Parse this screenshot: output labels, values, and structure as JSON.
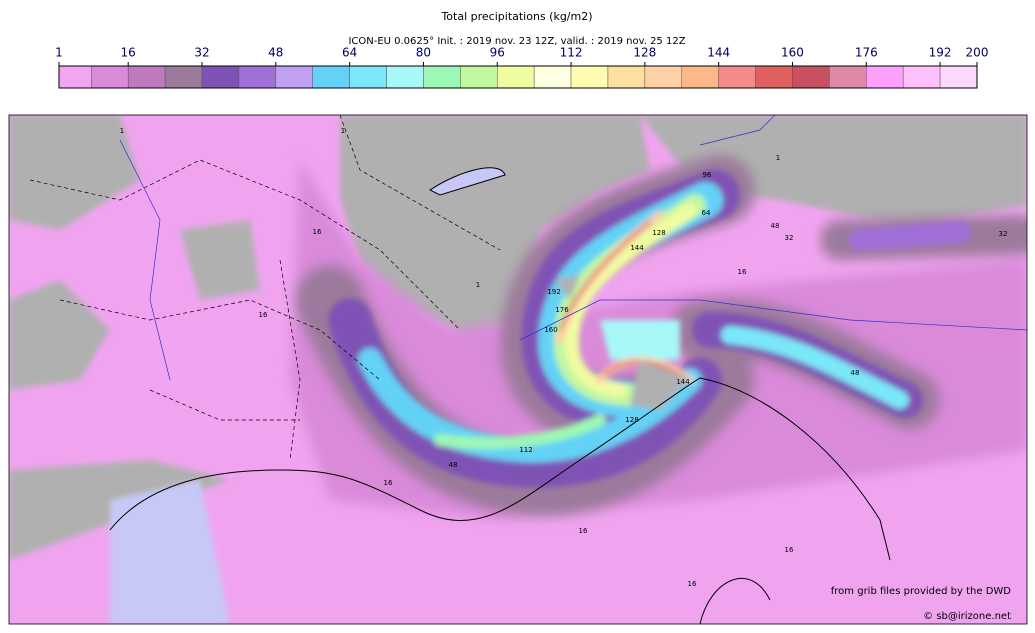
{
  "header": {
    "title": "Total precipitations (kg/m2)",
    "subtitle": "ICON-EU 0.0625° Init. : 2019 nov. 23 12Z, valid. : 2019 nov. 25 12Z"
  },
  "colorbar": {
    "range": [
      1,
      200
    ],
    "bounds": [
      1,
      8,
      16,
      24,
      32,
      40,
      48,
      56,
      64,
      72,
      80,
      88,
      96,
      104,
      112,
      120,
      128,
      136,
      144,
      152,
      160,
      168,
      176,
      184,
      192,
      200
    ],
    "colors": [
      "#f2a6f2",
      "#d98ad9",
      "#bf7abf",
      "#9c7a9c",
      "#7f53b5",
      "#a070d8",
      "#c0a0f0",
      "#64d2f6",
      "#7ae8f8",
      "#a8f8f8",
      "#9cf8b4",
      "#c0f8a0",
      "#f0fca0",
      "#fefee0",
      "#fefcb0",
      "#fde0a0",
      "#fdd0a8",
      "#fcb888",
      "#f48a8a",
      "#e06060",
      "#c85060",
      "#e088a8",
      "#fca0fc",
      "#fcc0fc",
      "#fcd8fc"
    ],
    "ticks": [
      1,
      16,
      32,
      48,
      64,
      80,
      96,
      112,
      128,
      144,
      160,
      176,
      192,
      200
    ]
  },
  "contour_labels": [
    "1",
    "1",
    "16",
    "16",
    "1",
    "192",
    "176",
    "160",
    "144",
    "128",
    "96",
    "64",
    "32",
    "1",
    "16",
    "48",
    "32",
    "48",
    "112",
    "48",
    "16",
    "128",
    "144",
    "16",
    "16",
    "16"
  ],
  "credits": [
    "from grib files provided by the DWD",
    "© sb@irizone.net"
  ]
}
